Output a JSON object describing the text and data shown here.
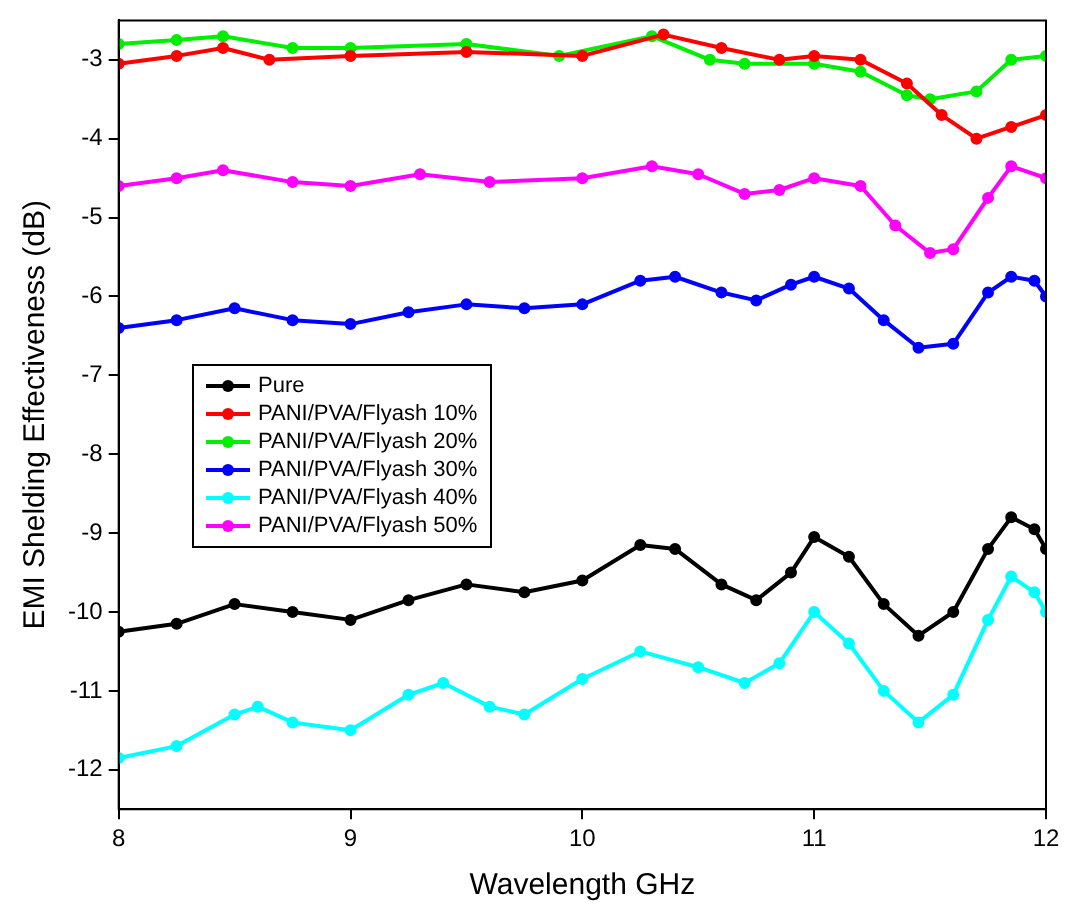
{
  "chart_data": {
    "type": "line",
    "xlabel": "Wavelength GHz",
    "ylabel": "EMI Shelding Effectiveness (dB)",
    "xlim": [
      8,
      12
    ],
    "xticks": [
      8,
      9,
      10,
      11,
      12
    ],
    "ylim": [
      -12.5,
      -2.5
    ],
    "yticks": [
      -12,
      -11,
      -10,
      -9,
      -8,
      -7,
      -6,
      -5,
      -4,
      -3
    ],
    "grid": false,
    "legend": "left",
    "marker": "circle",
    "line_style": "solid",
    "series": [
      {
        "name": "Pure",
        "color": "#000000",
        "x": [
          8,
          8.25,
          8.5,
          8.75,
          9,
          9.25,
          9.5,
          9.75,
          10,
          10.25,
          10.4,
          10.6,
          10.75,
          10.9,
          11,
          11.15,
          11.3,
          11.45,
          11.6,
          11.75,
          11.85,
          11.95,
          12
        ],
        "values": [
          -10.25,
          -10.15,
          -9.9,
          -10,
          -10.1,
          -9.85,
          -9.65,
          -9.75,
          -9.6,
          -9.15,
          -9.2,
          -9.65,
          -9.85,
          -9.5,
          -9.05,
          -9.3,
          -9.9,
          -10.3,
          -10,
          -9.2,
          -8.8,
          -8.95,
          -9.2
        ]
      },
      {
        "name": "PANI/PVA/Flyash 10%",
        "color": "#ff0000",
        "x": [
          8,
          8.25,
          8.45,
          8.65,
          9,
          9.5,
          10,
          10.35,
          10.6,
          10.85,
          11,
          11.2,
          11.4,
          11.55,
          11.7,
          11.85,
          12
        ],
        "values": [
          -3.05,
          -2.95,
          -2.85,
          -3,
          -2.95,
          -2.9,
          -2.95,
          -2.68,
          -2.85,
          -3,
          -2.95,
          -3,
          -3.3,
          -3.7,
          -4,
          -3.85,
          -3.7
        ]
      },
      {
        "name": "PANI/PVA/Flyash 20%",
        "color": "#00ee00",
        "x": [
          8,
          8.25,
          8.45,
          8.75,
          9,
          9.5,
          9.9,
          10.3,
          10.55,
          10.7,
          11,
          11.2,
          11.4,
          11.5,
          11.7,
          11.85,
          12
        ],
        "values": [
          -2.8,
          -2.75,
          -2.7,
          -2.85,
          -2.85,
          -2.8,
          -2.95,
          -2.7,
          -3,
          -3.05,
          -3.05,
          -3.15,
          -3.45,
          -3.5,
          -3.4,
          -3,
          -2.95
        ]
      },
      {
        "name": "PANI/PVA/Flyash 30%",
        "color": "#0000ff",
        "x": [
          8,
          8.25,
          8.5,
          8.75,
          9,
          9.25,
          9.5,
          9.75,
          10,
          10.25,
          10.4,
          10.6,
          10.75,
          10.9,
          11,
          11.15,
          11.3,
          11.45,
          11.6,
          11.75,
          11.85,
          11.95,
          12
        ],
        "values": [
          -6.4,
          -6.3,
          -6.15,
          -6.3,
          -6.35,
          -6.2,
          -6.1,
          -6.15,
          -6.1,
          -5.8,
          -5.75,
          -5.95,
          -6.05,
          -5.85,
          -5.75,
          -5.9,
          -6.3,
          -6.65,
          -6.6,
          -5.95,
          -5.75,
          -5.8,
          -6
        ]
      },
      {
        "name": "PANI/PVA/Flyash 40%",
        "color": "#00ffff",
        "x": [
          8,
          8.25,
          8.5,
          8.6,
          8.75,
          9,
          9.25,
          9.4,
          9.6,
          9.75,
          10,
          10.25,
          10.5,
          10.7,
          10.85,
          11,
          11.15,
          11.3,
          11.45,
          11.6,
          11.75,
          11.85,
          11.95,
          12
        ],
        "values": [
          -11.85,
          -11.7,
          -11.3,
          -11.2,
          -11.4,
          -11.5,
          -11.05,
          -10.9,
          -11.2,
          -11.3,
          -10.85,
          -10.5,
          -10.7,
          -10.9,
          -10.65,
          -10,
          -10.4,
          -11,
          -11.4,
          -11.05,
          -10.1,
          -9.55,
          -9.75,
          -10
        ]
      },
      {
        "name": "PANI/PVA/Flyash 50%",
        "color": "#ff00ff",
        "x": [
          8,
          8.25,
          8.45,
          8.75,
          9,
          9.3,
          9.6,
          10,
          10.3,
          10.5,
          10.7,
          10.85,
          11,
          11.2,
          11.35,
          11.5,
          11.6,
          11.75,
          11.85,
          12
        ],
        "values": [
          -4.6,
          -4.5,
          -4.4,
          -4.55,
          -4.6,
          -4.45,
          -4.55,
          -4.5,
          -4.35,
          -4.45,
          -4.7,
          -4.65,
          -4.5,
          -4.6,
          -5.1,
          -5.45,
          -5.4,
          -4.75,
          -4.35,
          -4.5
        ]
      }
    ]
  }
}
